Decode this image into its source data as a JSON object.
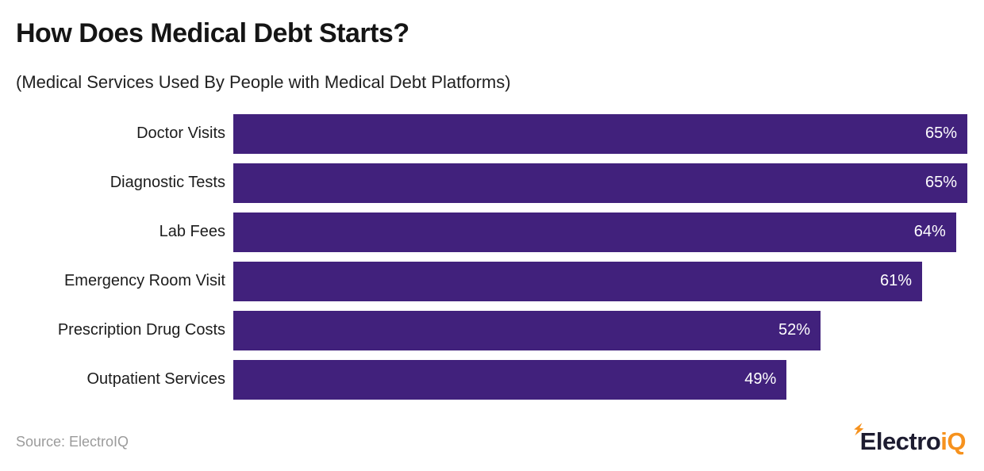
{
  "header": {
    "title": "How Does Medical Debt Starts?",
    "subtitle": "(Medical Services Used By People with Medical Debt Platforms)"
  },
  "chart_data": {
    "type": "bar",
    "orientation": "horizontal",
    "title": "How Does Medical Debt Starts?",
    "subtitle": "(Medical Services Used By People with Medical Debt Platforms)",
    "categories": [
      "Doctor Visits",
      "Diagnostic Tests",
      "Lab Fees",
      "Emergency Room Visit",
      "Prescription Drug Costs",
      "Outpatient Services"
    ],
    "values": [
      65,
      65,
      64,
      61,
      52,
      49
    ],
    "value_labels": [
      "65%",
      "65%",
      "64%",
      "61%",
      "52%",
      "49%"
    ],
    "xlabel": "",
    "ylabel": "",
    "xlim": [
      0,
      65
    ],
    "grid": false,
    "legend": false,
    "bar_color": "#41217c",
    "value_label_color": "#ffffff",
    "value_label_position": "inside-end"
  },
  "footer": {
    "source": "Source: ElectroIQ",
    "logo_part_dark": "Electro",
    "logo_part_orange": "iQ"
  },
  "colors": {
    "bar": "#41217c",
    "title_text": "#151515",
    "source_text": "#9b9b9b",
    "logo_dark": "#1d1c30",
    "logo_orange": "#f6921e"
  }
}
